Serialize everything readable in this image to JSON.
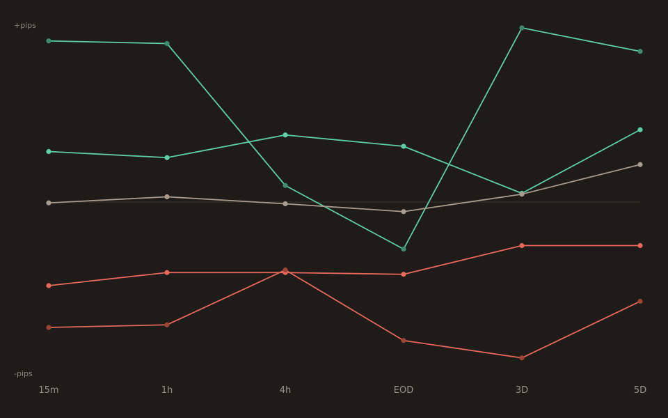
{
  "chart_data": {
    "type": "line",
    "categories": [
      "15m",
      "1h",
      "4h",
      "EOD",
      "3D",
      "5D"
    ],
    "y_top_label": "+pips",
    "y_bottom_label": "-pips",
    "ylim": [
      -100,
      100
    ],
    "zero_line": true,
    "grid": false,
    "legend": "none",
    "series": [
      {
        "values": [
          92.5,
          91.0,
          9.5,
          -27.0,
          100.0,
          86.5
        ],
        "color": "#5ecfa6",
        "marker_color": "#3f8c70"
      },
      {
        "values": [
          29.0,
          25.5,
          38.5,
          32.0,
          5.0,
          41.5
        ],
        "color": "#5ecfa6",
        "marker_color": "#5ecfa6"
      },
      {
        "values": [
          -0.5,
          3.0,
          -1.0,
          -5.5,
          4.5,
          21.5
        ],
        "color": "#a89b90",
        "marker_color": "#a89b90"
      },
      {
        "values": [
          -48.0,
          -40.5,
          -40.5,
          -41.5,
          -25.0,
          -25.0
        ],
        "color": "#e8695c",
        "marker_color": "#e8695c"
      },
      {
        "values": [
          -72.0,
          -70.5,
          -39.0,
          -79.5,
          -89.5,
          -57.0
        ],
        "color": "#e8695c",
        "marker_color": "#9c4438"
      }
    ]
  }
}
